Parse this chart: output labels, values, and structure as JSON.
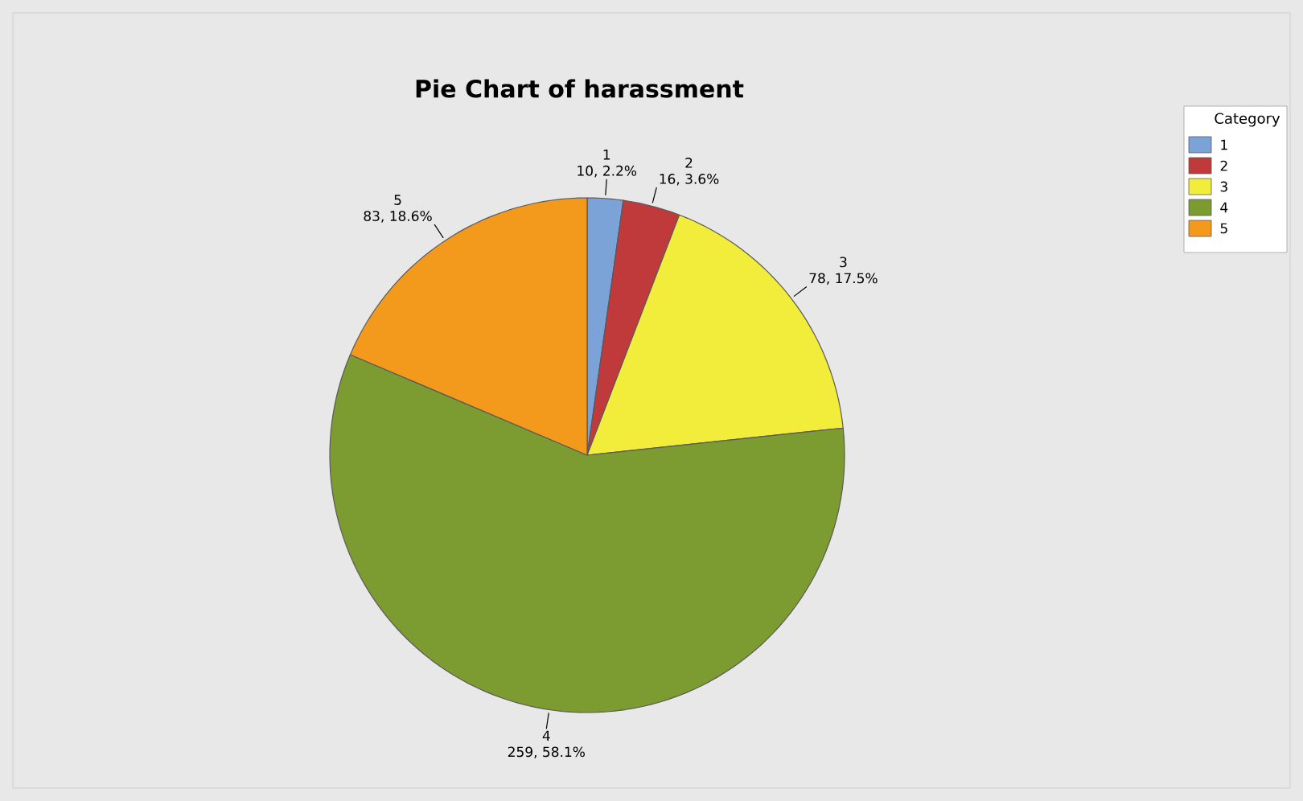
{
  "chart_data": {
    "type": "pie",
    "title": "Pie Chart of harassment",
    "categories": [
      "1",
      "2",
      "3",
      "4",
      "5"
    ],
    "values": [
      10,
      16,
      78,
      259,
      83
    ],
    "value_labels": [
      "10, 2.2%",
      "16, 3.6%",
      "78, 17.5%",
      "259, 58.1%",
      "83, 18.6%"
    ],
    "colors": [
      "#7ba3d8",
      "#c0393b",
      "#f2ec3a",
      "#7c9b30",
      "#f39a1d"
    ],
    "legend": "top right",
    "legend_title": "Category"
  }
}
